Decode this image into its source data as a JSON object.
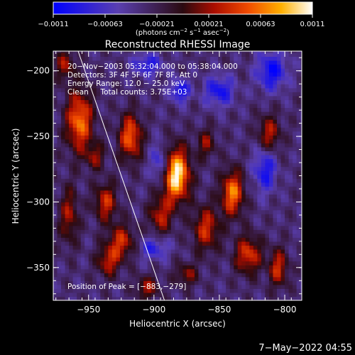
{
  "chart_data": {
    "type": "heatmap",
    "title": "Reconstructed RHESSI Image",
    "xlabel": "Heliocentric X (arcsec)",
    "ylabel": "Heliocentric Y (arcsec)",
    "xlim": [
      -977,
      -787
    ],
    "ylim": [
      -375,
      -185
    ],
    "x_ticks": [
      -950,
      -900,
      -850,
      -800
    ],
    "y_ticks": [
      -200,
      -250,
      -300,
      -350
    ],
    "x_tick_labels": [
      "−950",
      "−900",
      "−850",
      "−800"
    ],
    "y_tick_labels": [
      "−200",
      "−250",
      "−300",
      "−350"
    ],
    "colorbar": {
      "min": -0.0011,
      "max": 0.0011,
      "tick_labels": [
        "−0.0011",
        "−0.00063",
        "−0.00021",
        "0.00021",
        "0.00063",
        "0.0011"
      ],
      "unit_prefix": "(photons cm",
      "unit_sup1": "−2",
      "unit_mid1": " s",
      "unit_sup2": "−1",
      "unit_mid2": " asec",
      "unit_sup3": "−2",
      "unit_suffix": ")"
    },
    "annotations": [
      "20−Nov−2003 05:32:04.000 to 05:38:04.000",
      "Detectors: 3F 4F 5F 6F 7F 8F, Att 0",
      "Energy Range: 12.0 − 25.0 keV",
      "Clean     Total counts: 3.75E+03"
    ],
    "peak_label": "Position of Peak = [−883,−279]",
    "peak": {
      "x": -883,
      "y": -279
    },
    "limb_line": [
      [
        -958,
        -185
      ],
      [
        -892,
        -375
      ]
    ],
    "blobs": [
      {
        "x": -883,
        "y": -279,
        "sx": 7,
        "sy": 14,
        "a": 1.0
      },
      {
        "x": -957,
        "y": -238,
        "sx": 7,
        "sy": 16,
        "a": 0.7
      },
      {
        "x": -918,
        "y": -250,
        "sx": 6,
        "sy": 12,
        "a": 0.65
      },
      {
        "x": -937,
        "y": -300,
        "sx": 6,
        "sy": 10,
        "a": 0.5
      },
      {
        "x": -925,
        "y": -330,
        "sx": 7,
        "sy": 9,
        "a": 0.5
      },
      {
        "x": -935,
        "y": -345,
        "sx": 6,
        "sy": 8,
        "a": 0.45
      },
      {
        "x": -895,
        "y": -310,
        "sx": 6,
        "sy": 10,
        "a": 0.45
      },
      {
        "x": -860,
        "y": -320,
        "sx": 7,
        "sy": 12,
        "a": 0.5
      },
      {
        "x": -840,
        "y": -293,
        "sx": 6,
        "sy": 12,
        "a": 0.7
      },
      {
        "x": -828,
        "y": -340,
        "sx": 7,
        "sy": 10,
        "a": 0.55
      },
      {
        "x": -805,
        "y": -350,
        "sx": 5,
        "sy": 10,
        "a": 0.5
      },
      {
        "x": -812,
        "y": -248,
        "sx": 6,
        "sy": 10,
        "a": 0.45
      },
      {
        "x": -965,
        "y": -310,
        "sx": 5,
        "sy": 15,
        "a": 0.4
      },
      {
        "x": -968,
        "y": -195,
        "sx": 5,
        "sy": 8,
        "a": 0.4
      },
      {
        "x": -905,
        "y": -365,
        "sx": 6,
        "sy": 6,
        "a": 0.4
      },
      {
        "x": -875,
        "y": -355,
        "sx": 6,
        "sy": 6,
        "a": 0.35
      },
      {
        "x": -860,
        "y": -255,
        "sx": 5,
        "sy": 8,
        "a": 0.35
      },
      {
        "x": -945,
        "y": -265,
        "sx": 5,
        "sy": 7,
        "a": 0.35
      },
      {
        "x": -880,
        "y": -215,
        "sx": -5,
        "sy": 6,
        "a": -0.5
      },
      {
        "x": -850,
        "y": -215,
        "sx": 8,
        "sy": 8,
        "a": -0.45
      },
      {
        "x": -810,
        "y": -200,
        "sx": 8,
        "sy": 10,
        "a": -0.5
      },
      {
        "x": -905,
        "y": -195,
        "sx": 8,
        "sy": 6,
        "a": -0.4
      },
      {
        "x": -895,
        "y": -270,
        "sx": 5,
        "sy": 10,
        "a": -0.4
      },
      {
        "x": -815,
        "y": -275,
        "sx": 6,
        "sy": 12,
        "a": -0.45
      },
      {
        "x": -900,
        "y": -335,
        "sx": 8,
        "sy": 6,
        "a": -0.35
      }
    ]
  },
  "timestamp": "7−May−2022 04:55"
}
